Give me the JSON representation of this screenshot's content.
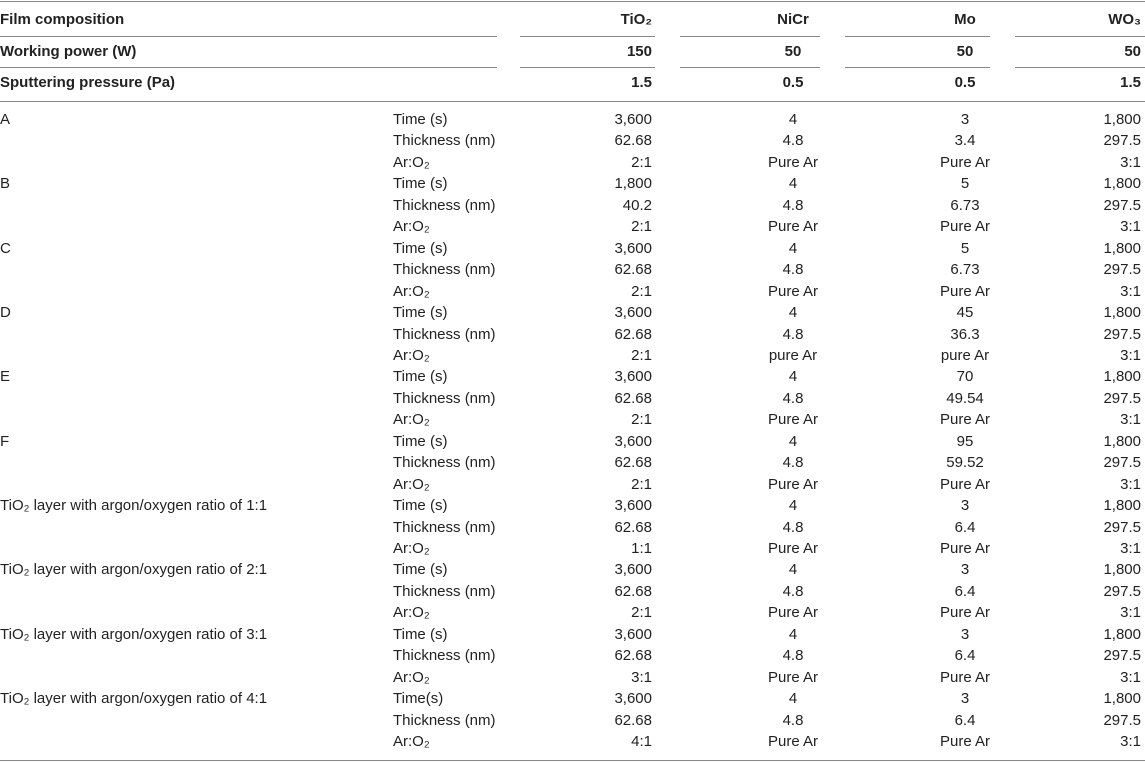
{
  "header": {
    "rows": [
      [
        "Film composition",
        "TiO₂",
        "NiCr",
        "Mo",
        "WO₃"
      ],
      [
        "Working power (W)",
        "150",
        "50",
        "50",
        "50"
      ],
      [
        "Sputtering pressure (Pa)",
        "1.5",
        "0.5",
        "0.5",
        "1.5"
      ]
    ]
  },
  "groups": [
    {
      "label": "A",
      "rows": [
        [
          "Time (s)",
          "3,600",
          "4",
          "3",
          "1,800"
        ],
        [
          "Thickness (nm)",
          "62.68",
          "4.8",
          "3.4",
          "297.5"
        ],
        [
          "Ar:O₂",
          "2:1",
          "Pure Ar",
          "Pure Ar",
          "3:1"
        ]
      ]
    },
    {
      "label": "B",
      "rows": [
        [
          "Time (s)",
          "1,800",
          "4",
          "5",
          "1,800"
        ],
        [
          "Thickness (nm)",
          "40.2",
          "4.8",
          "6.73",
          "297.5"
        ],
        [
          "Ar:O₂",
          "2:1",
          "Pure Ar",
          "Pure Ar",
          "3:1"
        ]
      ]
    },
    {
      "label": "C",
      "rows": [
        [
          "Time (s)",
          "3,600",
          "4",
          "5",
          "1,800"
        ],
        [
          "Thickness (nm)",
          "62.68",
          "4.8",
          "6.73",
          "297.5"
        ],
        [
          "Ar:O₂",
          "2:1",
          "Pure Ar",
          "Pure Ar",
          "3:1"
        ]
      ]
    },
    {
      "label": "D",
      "rows": [
        [
          "Time (s)",
          "3,600",
          "4",
          "45",
          "1,800"
        ],
        [
          "Thickness (nm)",
          "62.68",
          "4.8",
          "36.3",
          "297.5"
        ],
        [
          "Ar:O₂",
          "2:1",
          "pure Ar",
          "pure Ar",
          "3:1"
        ]
      ]
    },
    {
      "label": "E",
      "rows": [
        [
          "Time (s)",
          "3,600",
          "4",
          "70",
          "1,800"
        ],
        [
          "Thickness (nm)",
          "62.68",
          "4.8",
          "49.54",
          "297.5"
        ],
        [
          "Ar:O₂",
          "2:1",
          "Pure Ar",
          "Pure Ar",
          "3:1"
        ]
      ]
    },
    {
      "label": "F",
      "rows": [
        [
          "Time (s)",
          "3,600",
          "4",
          "95",
          "1,800"
        ],
        [
          "Thickness (nm)",
          "62.68",
          "4.8",
          "59.52",
          "297.5"
        ],
        [
          "Ar:O₂",
          "2:1",
          "Pure Ar",
          "Pure Ar",
          "3:1"
        ]
      ]
    },
    {
      "label": "TiO₂ layer with argon/oxygen ratio of 1:1",
      "rows": [
        [
          "Time (s)",
          "3,600",
          "4",
          "3",
          "1,800"
        ],
        [
          "Thickness (nm)",
          "62.68",
          "4.8",
          "6.4",
          "297.5"
        ],
        [
          "Ar:O₂",
          "1:1",
          "Pure Ar",
          "Pure Ar",
          "3:1"
        ]
      ]
    },
    {
      "label": "TiO₂ layer with argon/oxygen ratio of 2:1",
      "rows": [
        [
          "Time (s)",
          "3,600",
          "4",
          "3",
          "1,800"
        ],
        [
          "Thickness (nm)",
          "62.68",
          "4.8",
          "6.4",
          "297.5"
        ],
        [
          "Ar:O₂",
          "2:1",
          "Pure Ar",
          "Pure Ar",
          "3:1"
        ]
      ]
    },
    {
      "label": "TiO₂ layer with argon/oxygen ratio of 3:1",
      "rows": [
        [
          "Time (s)",
          "3,600",
          "4",
          "3",
          "1,800"
        ],
        [
          "Thickness (nm)",
          "62.68",
          "4.8",
          "6.4",
          "297.5"
        ],
        [
          "Ar:O₂",
          "3:1",
          "Pure Ar",
          "Pure Ar",
          "3:1"
        ]
      ]
    },
    {
      "label": "TiO₂ layer with argon/oxygen ratio of 4:1",
      "rows": [
        [
          "Time(s)",
          "3,600",
          "4",
          "3",
          "1,800"
        ],
        [
          "Thickness (nm)",
          "62.68",
          "4.8",
          "6.4",
          "297.5"
        ],
        [
          "Ar:O₂",
          "4:1",
          "Pure Ar",
          "Pure Ar",
          "3:1"
        ]
      ]
    }
  ]
}
